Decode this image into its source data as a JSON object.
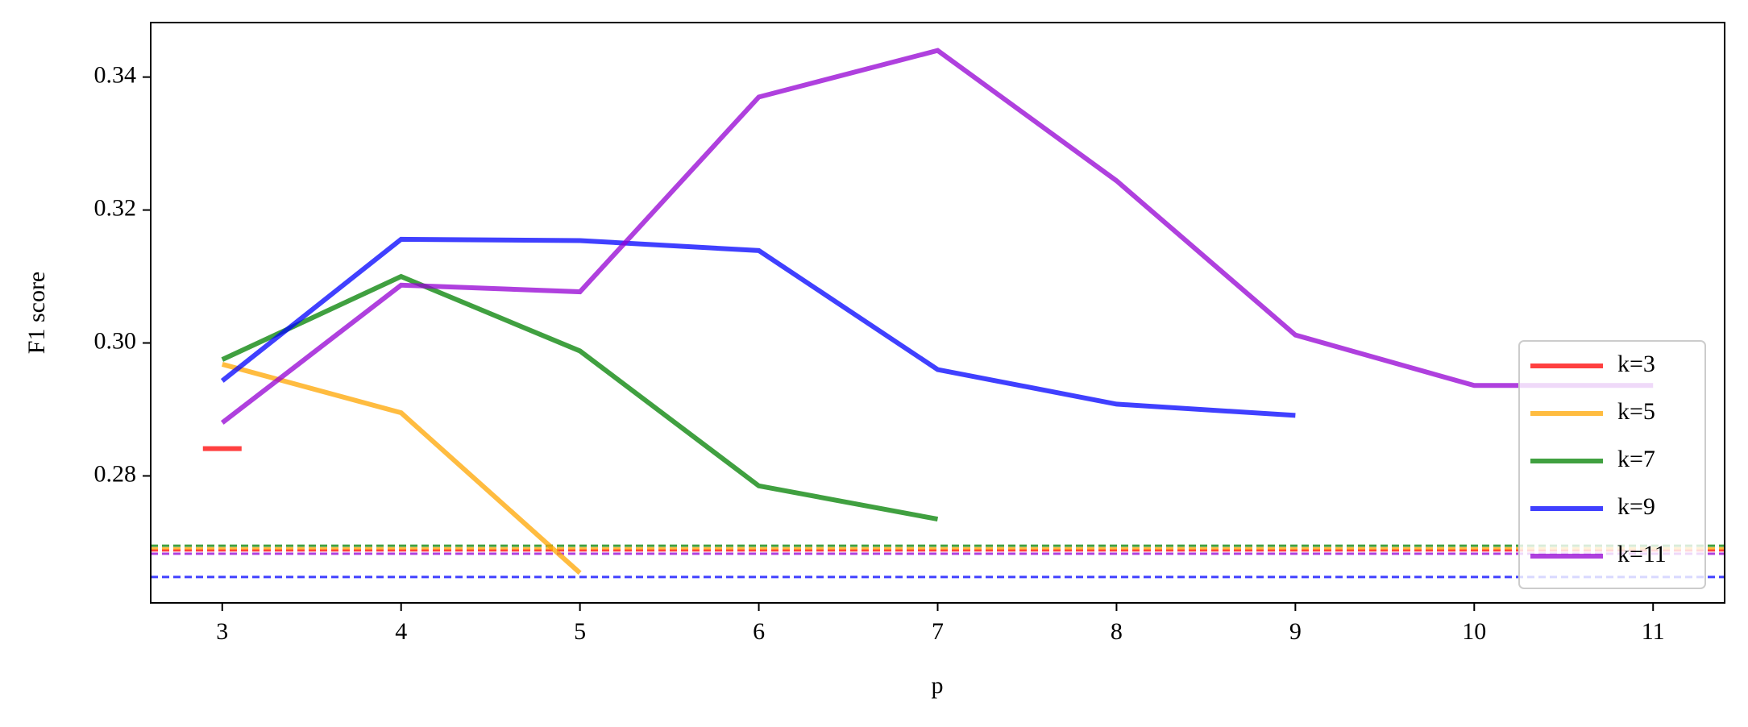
{
  "chart_data": {
    "type": "line",
    "xlabel": "p",
    "ylabel": "F1 score",
    "x": [
      3,
      4,
      5,
      6,
      7,
      8,
      9,
      10,
      11
    ],
    "series": [
      {
        "name": "k=3",
        "color": "#ff0000",
        "values": [
          0.2841,
          null,
          null,
          null,
          null,
          null,
          null,
          null,
          null
        ],
        "baseline": 0.2688
      },
      {
        "name": "k=5",
        "color": "#ffa500",
        "values": [
          0.2968,
          0.2895,
          0.2654,
          null,
          null,
          null,
          null,
          null,
          null
        ],
        "baseline": 0.2691
      },
      {
        "name": "k=7",
        "color": "#008000",
        "values": [
          0.2975,
          0.31,
          0.2988,
          0.2785,
          0.2735,
          null,
          null,
          null,
          null
        ],
        "baseline": 0.2695
      },
      {
        "name": "k=9",
        "color": "#0000ff",
        "values": [
          0.2943,
          0.3156,
          0.3154,
          0.3139,
          0.296,
          0.2908,
          0.2891,
          null,
          null
        ],
        "baseline": 0.2648
      },
      {
        "name": "k=11",
        "color": "#9400d3",
        "values": [
          0.288,
          0.3087,
          0.3077,
          0.337,
          0.344,
          0.3244,
          0.3012,
          0.2936,
          0.2936
        ],
        "baseline": 0.2683
      }
    ],
    "xlim": [
      2.6,
      11.4
    ],
    "xticks": [
      3,
      4,
      5,
      6,
      7,
      8,
      9,
      10,
      11
    ],
    "ylim": [
      0.2609,
      0.3482
    ],
    "yticks": [
      {
        "value": 0.28,
        "label": "0.28"
      },
      {
        "value": 0.3,
        "label": "0.30"
      },
      {
        "value": 0.32,
        "label": "0.32"
      },
      {
        "value": 0.34,
        "label": "0.34"
      }
    ],
    "grid": false,
    "legend": "lower right"
  }
}
